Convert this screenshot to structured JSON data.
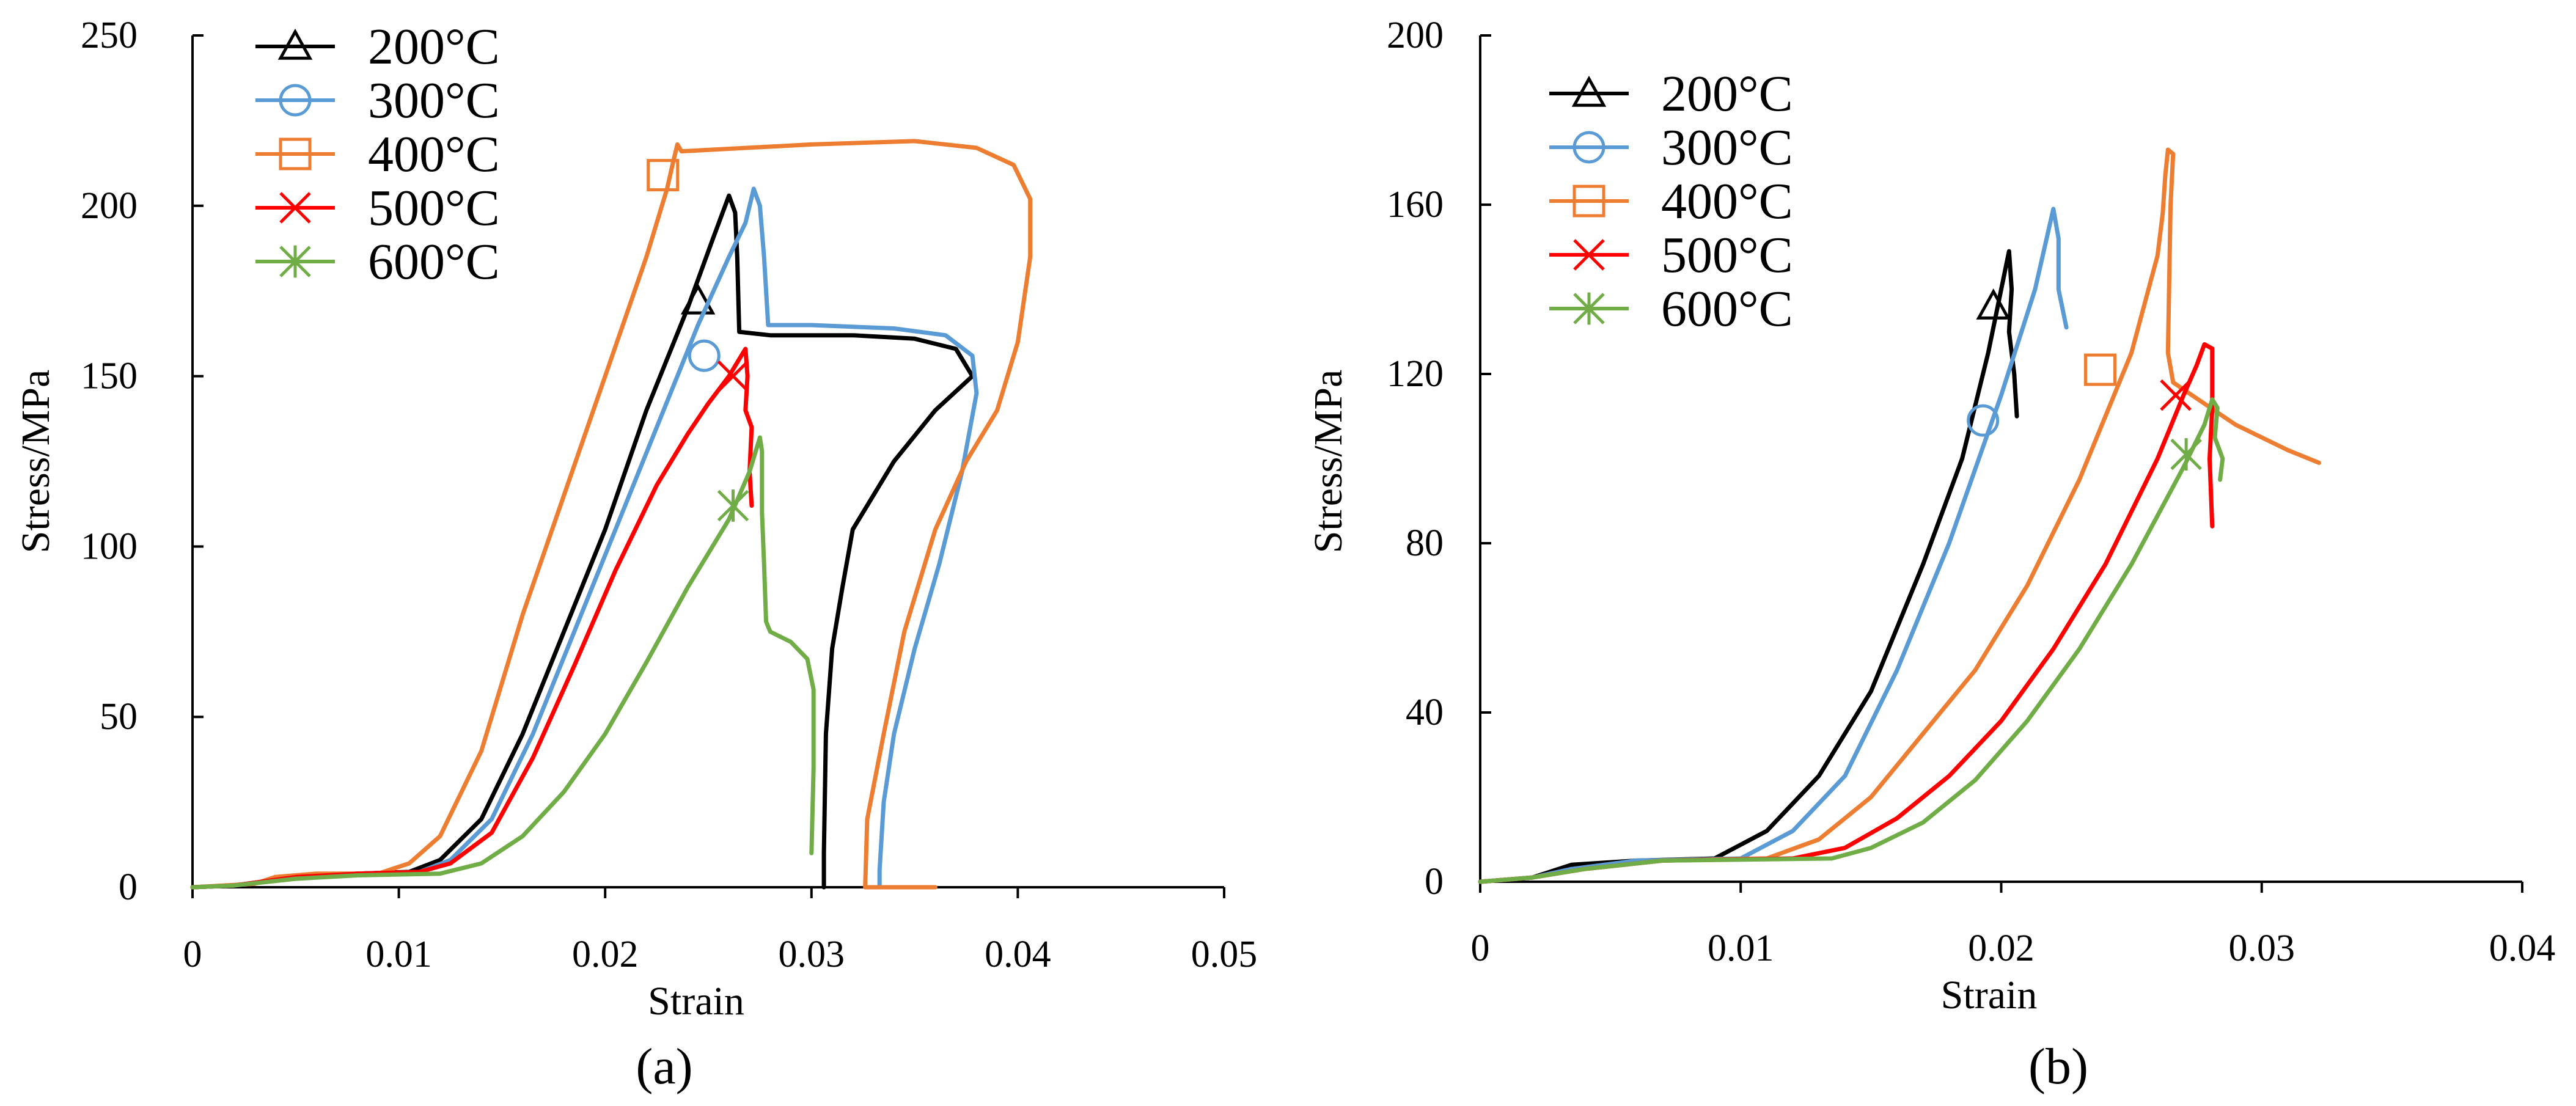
{
  "figure_captions": [
    "(a)",
    "(b)"
  ],
  "chart_data": [
    {
      "type": "line",
      "panel": "(a)",
      "xlabel": "Strain",
      "ylabel": "Stress/MPa",
      "xlim": [
        0,
        0.05
      ],
      "ylim": [
        0,
        250
      ],
      "xticks": [
        0,
        0.01,
        0.02,
        0.03,
        0.04,
        0.05
      ],
      "xtick_labels": [
        "0",
        "0.01",
        "0.02",
        "0.03",
        "0.04",
        "0.05"
      ],
      "yticks": [
        0,
        50,
        100,
        150,
        200,
        250
      ],
      "ytick_labels": [
        "0",
        "50",
        "100",
        "150",
        "200",
        "250"
      ],
      "legend_position": "top-left",
      "series": [
        {
          "name": "200°C",
          "color": "#000000",
          "marker": "triangle",
          "marker_at": [
            0.0245,
            172
          ],
          "points": [
            [
              0,
              0
            ],
            [
              0.002,
              0.5
            ],
            [
              0.005,
              3
            ],
            [
              0.008,
              4
            ],
            [
              0.0105,
              4.5
            ],
            [
              0.012,
              8
            ],
            [
              0.014,
              20
            ],
            [
              0.016,
              45
            ],
            [
              0.018,
              75
            ],
            [
              0.02,
              105
            ],
            [
              0.022,
              140
            ],
            [
              0.024,
              170
            ],
            [
              0.0252,
              190
            ],
            [
              0.026,
              203
            ],
            [
              0.0263,
              198
            ],
            [
              0.0264,
              185
            ],
            [
              0.0265,
              163
            ],
            [
              0.028,
              162
            ],
            [
              0.032,
              162
            ],
            [
              0.035,
              161
            ],
            [
              0.037,
              158
            ],
            [
              0.0378,
              150
            ],
            [
              0.036,
              140
            ],
            [
              0.034,
              125
            ],
            [
              0.032,
              105
            ],
            [
              0.0315,
              88
            ],
            [
              0.031,
              70
            ],
            [
              0.0307,
              45
            ],
            [
              0.0306,
              10
            ],
            [
              0.0306,
              0
            ]
          ]
        },
        {
          "name": "300°C",
          "color": "#5b9bd5",
          "marker": "circle",
          "marker_at": [
            0.0248,
            156
          ],
          "points": [
            [
              0,
              0
            ],
            [
              0.002,
              0.5
            ],
            [
              0.005,
              3
            ],
            [
              0.008,
              4
            ],
            [
              0.011,
              4.5
            ],
            [
              0.0125,
              8
            ],
            [
              0.0145,
              20
            ],
            [
              0.0165,
              45
            ],
            [
              0.0185,
              75
            ],
            [
              0.0205,
              105
            ],
            [
              0.0225,
              135
            ],
            [
              0.0245,
              165
            ],
            [
              0.026,
              185
            ],
            [
              0.0268,
              195
            ],
            [
              0.0272,
              205
            ],
            [
              0.0275,
              200
            ],
            [
              0.0277,
              185
            ],
            [
              0.0279,
              165
            ],
            [
              0.03,
              165
            ],
            [
              0.034,
              164
            ],
            [
              0.0365,
              162
            ],
            [
              0.0378,
              156
            ],
            [
              0.038,
              145
            ],
            [
              0.0373,
              122
            ],
            [
              0.0362,
              95
            ],
            [
              0.035,
              70
            ],
            [
              0.034,
              45
            ],
            [
              0.0335,
              25
            ],
            [
              0.0333,
              5
            ],
            [
              0.0333,
              0
            ]
          ]
        },
        {
          "name": "400°C",
          "color": "#ed7d31",
          "marker": "square",
          "marker_at": [
            0.0228,
            209
          ],
          "points": [
            [
              0,
              0
            ],
            [
              0.003,
              1
            ],
            [
              0.004,
              3
            ],
            [
              0.006,
              4
            ],
            [
              0.009,
              4
            ],
            [
              0.0105,
              7
            ],
            [
              0.012,
              15
            ],
            [
              0.014,
              40
            ],
            [
              0.016,
              80
            ],
            [
              0.018,
              115
            ],
            [
              0.02,
              150
            ],
            [
              0.022,
              185
            ],
            [
              0.023,
              205
            ],
            [
              0.0233,
              213
            ],
            [
              0.0235,
              218
            ],
            [
              0.0237,
              216
            ],
            [
              0.03,
              218
            ],
            [
              0.035,
              219
            ],
            [
              0.038,
              217
            ],
            [
              0.0398,
              212
            ],
            [
              0.0406,
              202
            ],
            [
              0.0406,
              185
            ],
            [
              0.04,
              160
            ],
            [
              0.039,
              140
            ],
            [
              0.0375,
              125
            ],
            [
              0.036,
              105
            ],
            [
              0.0345,
              75
            ],
            [
              0.0335,
              45
            ],
            [
              0.0327,
              20
            ],
            [
              0.0326,
              0
            ],
            [
              0.036,
              0
            ]
          ]
        },
        {
          "name": "500°C",
          "color": "#ff0000",
          "marker": "x",
          "marker_at": [
            0.0262,
            150
          ],
          "points": [
            [
              0,
              0
            ],
            [
              0.002,
              0.5
            ],
            [
              0.005,
              3
            ],
            [
              0.008,
              4
            ],
            [
              0.011,
              4.5
            ],
            [
              0.0125,
              7
            ],
            [
              0.0145,
              16
            ],
            [
              0.0165,
              38
            ],
            [
              0.0185,
              65
            ],
            [
              0.0205,
              93
            ],
            [
              0.0225,
              118
            ],
            [
              0.024,
              133
            ],
            [
              0.025,
              142
            ],
            [
              0.026,
              150
            ],
            [
              0.0265,
              155
            ],
            [
              0.0268,
              158
            ],
            [
              0.0269,
              150
            ],
            [
              0.0268,
              140
            ],
            [
              0.0271,
              135
            ],
            [
              0.027,
              122
            ],
            [
              0.0271,
              112
            ]
          ]
        },
        {
          "name": "600°C",
          "color": "#70ad47",
          "marker": "asterisk",
          "marker_at": [
            0.0262,
            112
          ],
          "points": [
            [
              0,
              0
            ],
            [
              0.002,
              0.5
            ],
            [
              0.005,
              2.5
            ],
            [
              0.008,
              3.5
            ],
            [
              0.012,
              4
            ],
            [
              0.014,
              7
            ],
            [
              0.016,
              15
            ],
            [
              0.018,
              28
            ],
            [
              0.02,
              45
            ],
            [
              0.022,
              66
            ],
            [
              0.024,
              88
            ],
            [
              0.026,
              108
            ],
            [
              0.027,
              122
            ],
            [
              0.0273,
              128
            ],
            [
              0.0275,
              132
            ],
            [
              0.0276,
              128
            ],
            [
              0.0276,
              110
            ],
            [
              0.0277,
              95
            ],
            [
              0.0278,
              78
            ],
            [
              0.028,
              75
            ],
            [
              0.029,
              72
            ],
            [
              0.0298,
              67
            ],
            [
              0.0301,
              58
            ],
            [
              0.0301,
              35
            ],
            [
              0.03,
              10
            ]
          ]
        }
      ]
    },
    {
      "type": "line",
      "panel": "(b)",
      "xlabel": "Strain",
      "ylabel": "Stress/MPa",
      "xlim": [
        0,
        0.04
      ],
      "ylim": [
        0,
        200
      ],
      "xticks": [
        0,
        0.01,
        0.02,
        0.03,
        0.04
      ],
      "xtick_labels": [
        "0",
        "0.01",
        "0.02",
        "0.03",
        "0.04"
      ],
      "yticks": [
        0,
        40,
        80,
        120,
        160,
        200
      ],
      "ytick_labels": [
        "0",
        "40",
        "80",
        "120",
        "160",
        "200"
      ],
      "legend_position": "top-left",
      "series": [
        {
          "name": "200°C",
          "color": "#000000",
          "marker": "triangle",
          "marker_at": [
            0.0197,
            136
          ],
          "points": [
            [
              0,
              0
            ],
            [
              0.002,
              1
            ],
            [
              0.0035,
              4
            ],
            [
              0.006,
              5
            ],
            [
              0.009,
              5.5
            ],
            [
              0.011,
              12
            ],
            [
              0.013,
              25
            ],
            [
              0.015,
              45
            ],
            [
              0.017,
              75
            ],
            [
              0.0185,
              100
            ],
            [
              0.0195,
              125
            ],
            [
              0.02,
              140
            ],
            [
              0.0203,
              149
            ],
            [
              0.0204,
              140
            ],
            [
              0.0203,
              130
            ],
            [
              0.0205,
              120
            ],
            [
              0.0206,
              110
            ]
          ]
        },
        {
          "name": "300°C",
          "color": "#5b9bd5",
          "marker": "circle",
          "marker_at": [
            0.0193,
            109
          ],
          "points": [
            [
              0,
              0
            ],
            [
              0.002,
              1
            ],
            [
              0.0035,
              3
            ],
            [
              0.006,
              5
            ],
            [
              0.01,
              5.5
            ],
            [
              0.012,
              12
            ],
            [
              0.014,
              25
            ],
            [
              0.016,
              50
            ],
            [
              0.018,
              80
            ],
            [
              0.02,
              115
            ],
            [
              0.0213,
              140
            ],
            [
              0.022,
              159
            ],
            [
              0.0222,
              152
            ],
            [
              0.0222,
              140
            ],
            [
              0.0225,
              131
            ]
          ]
        },
        {
          "name": "400°C",
          "color": "#ed7d31",
          "marker": "square",
          "marker_at": [
            0.0238,
            121
          ],
          "points": [
            [
              0,
              0
            ],
            [
              0.002,
              1
            ],
            [
              0.004,
              3
            ],
            [
              0.007,
              5
            ],
            [
              0.011,
              5.5
            ],
            [
              0.013,
              10
            ],
            [
              0.015,
              20
            ],
            [
              0.017,
              35
            ],
            [
              0.019,
              50
            ],
            [
              0.021,
              70
            ],
            [
              0.023,
              95
            ],
            [
              0.025,
              125
            ],
            [
              0.026,
              148
            ],
            [
              0.0262,
              158
            ],
            [
              0.0263,
              167
            ],
            [
              0.0264,
              173
            ],
            [
              0.0266,
              172
            ],
            [
              0.0265,
              160
            ],
            [
              0.0264,
              125
            ],
            [
              0.0266,
              118
            ],
            [
              0.029,
              108
            ],
            [
              0.031,
              102
            ],
            [
              0.0322,
              99
            ]
          ]
        },
        {
          "name": "500°C",
          "color": "#ff0000",
          "marker": "x",
          "marker_at": [
            0.0267,
            115
          ],
          "points": [
            [
              0,
              0
            ],
            [
              0.002,
              1
            ],
            [
              0.004,
              3
            ],
            [
              0.007,
              5
            ],
            [
              0.012,
              5.5
            ],
            [
              0.014,
              8
            ],
            [
              0.016,
              15
            ],
            [
              0.018,
              25
            ],
            [
              0.02,
              38
            ],
            [
              0.022,
              55
            ],
            [
              0.024,
              75
            ],
            [
              0.026,
              100
            ],
            [
              0.027,
              115
            ],
            [
              0.0275,
              122
            ],
            [
              0.0278,
              127
            ],
            [
              0.0281,
              126
            ],
            [
              0.0281,
              112
            ],
            [
              0.028,
              100
            ],
            [
              0.0281,
              84
            ]
          ]
        },
        {
          "name": "600°C",
          "color": "#70ad47",
          "marker": "asterisk",
          "marker_at": [
            0.0271,
            101
          ],
          "points": [
            [
              0,
              0
            ],
            [
              0.002,
              1
            ],
            [
              0.004,
              3
            ],
            [
              0.007,
              5
            ],
            [
              0.0135,
              5.5
            ],
            [
              0.015,
              8
            ],
            [
              0.017,
              14
            ],
            [
              0.019,
              24
            ],
            [
              0.021,
              38
            ],
            [
              0.023,
              55
            ],
            [
              0.025,
              75
            ],
            [
              0.027,
              98
            ],
            [
              0.0278,
              108
            ],
            [
              0.0281,
              114
            ],
            [
              0.0283,
              112
            ],
            [
              0.0282,
              105
            ],
            [
              0.0285,
              100
            ],
            [
              0.0284,
              95
            ]
          ]
        }
      ]
    }
  ]
}
